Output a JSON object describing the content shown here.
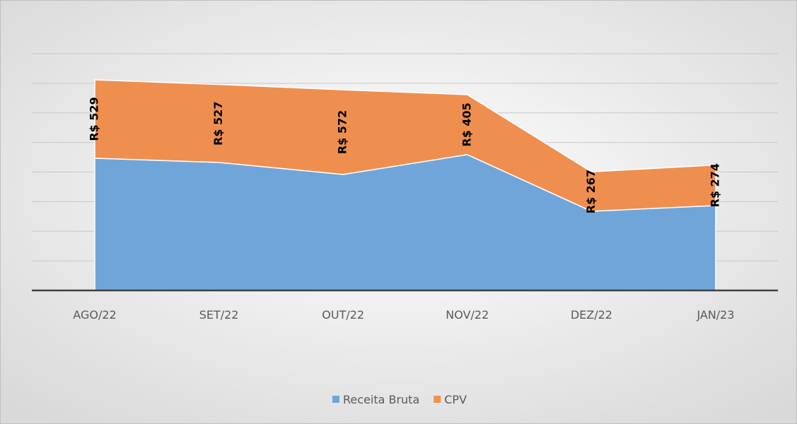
{
  "chart_data": {
    "type": "stacked-area",
    "categories": [
      "AGO/22",
      "SET/22",
      "OUT/22",
      "NOV/22",
      "DEZ/22",
      "JAN/23"
    ],
    "series": [
      {
        "name": "Receita Bruta",
        "color": "#70a5da",
        "values": [
          894,
          865,
          784,
          918,
          535,
          574
        ]
      },
      {
        "name": "CPV",
        "color": "#ef8f4f",
        "values": [
          529,
          527,
          572,
          405,
          267,
          274
        ],
        "value_labels": [
          "R$ 529",
          "R$ 527",
          "R$ 572",
          "R$ 405",
          "R$ 267",
          "R$ 274"
        ]
      }
    ],
    "ylim": [
      0,
      1600
    ],
    "yticks": [
      0,
      200,
      400,
      600,
      800,
      1000,
      1200,
      1400,
      1600
    ],
    "grid": true,
    "legend": "bottom"
  }
}
